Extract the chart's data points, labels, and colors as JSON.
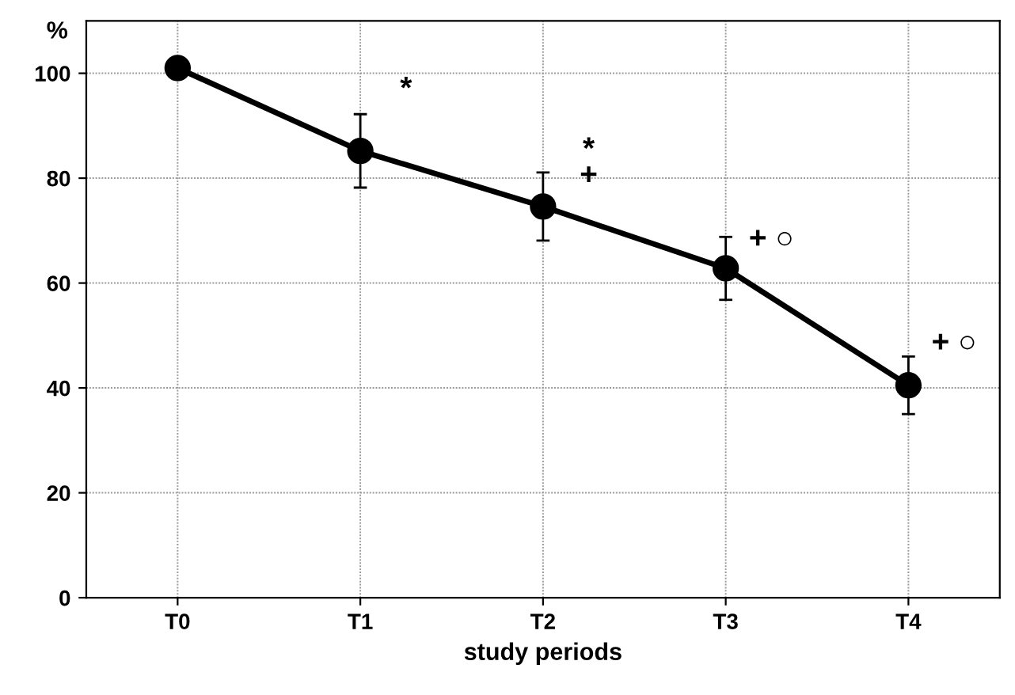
{
  "chart_data": {
    "type": "line",
    "xlabel": "study periods",
    "ylabel": "%",
    "categories": [
      "T0",
      "T1",
      "T2",
      "T3",
      "T4"
    ],
    "series": [
      {
        "color": "#000000",
        "values": [
          101,
          85.2,
          74.6,
          62.8,
          40.5
        ],
        "errors": [
          null,
          7,
          6.5,
          6,
          5.5
        ]
      }
    ],
    "ylim": [
      0,
      110
    ],
    "yticks": [
      0,
      20,
      40,
      60,
      80,
      100
    ],
    "grid": true,
    "marker": "circle",
    "line_style": "solid",
    "annotations": [
      "*",
      "*",
      "+",
      "+ ○",
      "+ ○"
    ]
  }
}
